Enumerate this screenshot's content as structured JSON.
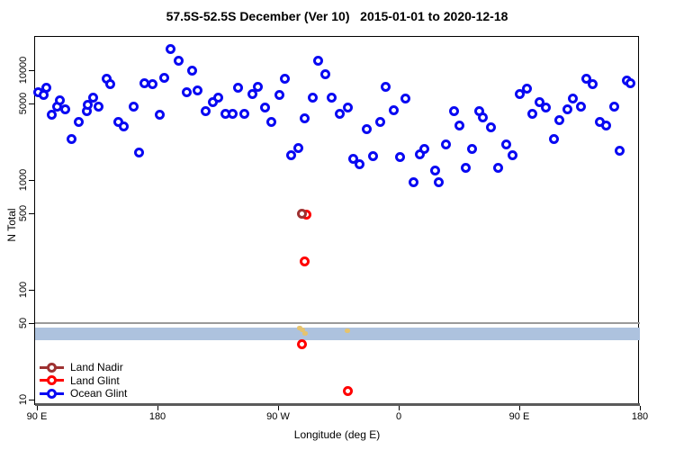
{
  "title": "57.5S-52.5S December (Ver 10)   2015-01-01 to 2020-12-18",
  "axes": {
    "x": {
      "label": "Longitude (deg E)",
      "range_deg_east": [
        90,
        540
      ],
      "ticks": [
        {
          "value": 90,
          "label": "90 E"
        },
        {
          "value": 180,
          "label": "180"
        },
        {
          "value": 270,
          "label": "90 W"
        },
        {
          "value": 360,
          "label": "0"
        },
        {
          "value": 450,
          "label": "90 E"
        },
        {
          "value": 540,
          "label": "180"
        }
      ]
    },
    "y": {
      "label": "N Total",
      "scale": "log",
      "ticks": [
        {
          "value": 10,
          "label": "10"
        },
        {
          "value": 50,
          "label": "50"
        },
        {
          "value": 100,
          "label": "100"
        },
        {
          "value": 500,
          "label": "500"
        },
        {
          "value": 1000,
          "label": "1000"
        },
        {
          "value": 5000,
          "label": "5000"
        },
        {
          "value": 10000,
          "label": "10000"
        }
      ]
    }
  },
  "legend": {
    "items": [
      {
        "label": "Land Nadir",
        "color": "#9e3232"
      },
      {
        "label": "Land Glint",
        "color": "#ff0000"
      },
      {
        "label": "Ocean Glint",
        "color": "#0909f2"
      }
    ]
  },
  "chart_data": {
    "type": "scatter",
    "title": "57.5S-52.5S December (Ver 10)   2015-01-01 to 2020-12-18",
    "xlabel": "Longitude (deg E)",
    "ylabel": "N Total",
    "x_note": "longitude axis runs 90E eastward through 180, 90W, 0 and back to 180 (90..540 deg E)",
    "xlim": [
      90,
      540
    ],
    "ylim": [
      9,
      21000
    ],
    "yscale": "log",
    "series": [
      {
        "name": "Ocean Glint",
        "color": "#0909f2",
        "marker": "open-circle",
        "points": [
          [
            91,
            6350
          ],
          [
            95,
            5900
          ],
          [
            97,
            6860
          ],
          [
            101,
            3960
          ],
          [
            105,
            4700
          ],
          [
            107,
            5280
          ],
          [
            111,
            4360
          ],
          [
            116,
            2340
          ],
          [
            121,
            3410
          ],
          [
            127,
            4200
          ],
          [
            128,
            4790
          ],
          [
            132,
            5670
          ],
          [
            136,
            4700
          ],
          [
            142,
            8300
          ],
          [
            145,
            7400
          ],
          [
            151,
            3410
          ],
          [
            155,
            3100
          ],
          [
            162,
            4700
          ],
          [
            166,
            1795
          ],
          [
            170,
            7670
          ],
          [
            176,
            7530
          ],
          [
            182,
            3960
          ],
          [
            185,
            8550
          ],
          [
            190,
            15700
          ],
          [
            196,
            12100
          ],
          [
            202,
            6350
          ],
          [
            206,
            10000
          ],
          [
            210,
            6600
          ],
          [
            216,
            4200
          ],
          [
            221,
            5160
          ],
          [
            225,
            5670
          ],
          [
            231,
            4040
          ],
          [
            236,
            4040
          ],
          [
            240,
            6860
          ],
          [
            245,
            4040
          ],
          [
            251,
            6010
          ],
          [
            255,
            7100
          ],
          [
            260,
            4610
          ],
          [
            265,
            3350
          ],
          [
            271,
            5900
          ],
          [
            275,
            8300
          ],
          [
            280,
            1665
          ],
          [
            285,
            1970
          ],
          [
            290,
            3610
          ],
          [
            296,
            5670
          ],
          [
            300,
            12100
          ],
          [
            305,
            9100
          ],
          [
            310,
            5670
          ],
          [
            316,
            4040
          ],
          [
            322,
            4610
          ],
          [
            326,
            1545
          ],
          [
            331,
            1380
          ],
          [
            336,
            2930
          ],
          [
            341,
            1634
          ],
          [
            346,
            3410
          ],
          [
            350,
            7000
          ],
          [
            356,
            4280
          ],
          [
            361,
            1604
          ],
          [
            365,
            5570
          ],
          [
            371,
            945
          ],
          [
            376,
            1700
          ],
          [
            379,
            1900
          ],
          [
            387,
            1230
          ],
          [
            390,
            945
          ],
          [
            395,
            2090
          ],
          [
            401,
            4200
          ],
          [
            405,
            3160
          ],
          [
            410,
            1300
          ],
          [
            415,
            1900
          ],
          [
            420,
            4200
          ],
          [
            423,
            3680
          ],
          [
            429,
            2990
          ],
          [
            434,
            1300
          ],
          [
            440,
            2090
          ],
          [
            445,
            1665
          ],
          [
            450,
            6120
          ],
          [
            456,
            6730
          ],
          [
            460,
            4040
          ],
          [
            465,
            5160
          ],
          [
            470,
            4530
          ],
          [
            476,
            2380
          ],
          [
            480,
            3480
          ],
          [
            486,
            4360
          ],
          [
            490,
            5570
          ],
          [
            496,
            4700
          ],
          [
            500,
            8300
          ],
          [
            505,
            7400
          ],
          [
            510,
            3410
          ],
          [
            515,
            3160
          ],
          [
            521,
            4700
          ],
          [
            525,
            1830
          ],
          [
            530,
            8000
          ],
          [
            533,
            7670
          ]
        ]
      },
      {
        "name": "Land Glint",
        "color": "#ff0000",
        "marker": "open-circle",
        "points": [
          [
            291,
            485
          ],
          [
            290,
            180
          ],
          [
            288,
            32
          ],
          [
            322,
            12
          ]
        ]
      },
      {
        "name": "Land Nadir",
        "color": "#9e3232",
        "marker": "open-circle",
        "points": [
          [
            288,
            497
          ]
        ]
      },
      {
        "name": "unlabeled gold marks",
        "color": "#e5c36e",
        "marker": "small-dot",
        "points": [
          [
            286,
            45
          ],
          [
            288,
            43
          ],
          [
            290,
            40
          ],
          [
            322,
            42
          ]
        ]
      }
    ],
    "band": {
      "y_from": 35,
      "y_to": 45,
      "color": "#adc2de"
    },
    "hlines": [
      {
        "y": 50,
        "color": "#9a9a9a",
        "thickness_px": 2
      },
      {
        "y": 9,
        "color": "#5a5a5a",
        "thickness_px": 3
      }
    ],
    "legend_position": "bottom-left",
    "grid": false
  }
}
